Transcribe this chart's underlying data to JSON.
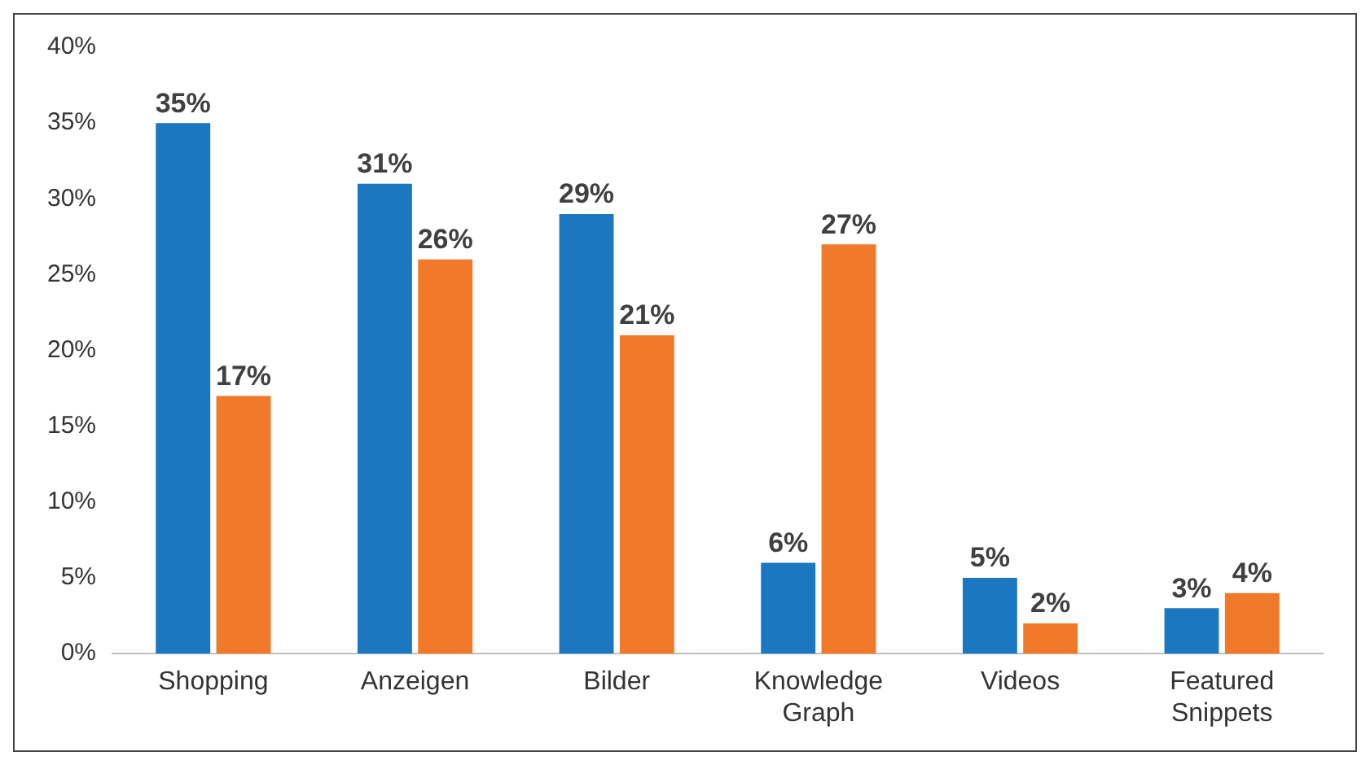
{
  "chart_data": {
    "type": "bar",
    "categories": [
      "Shopping",
      "Anzeigen",
      "Bilder",
      "Knowledge Graph",
      "Videos",
      "Featured Snippets"
    ],
    "series": [
      {
        "color": "#1a77c0",
        "values": [
          35,
          31,
          29,
          6,
          5,
          3
        ],
        "value_labels": [
          "35%",
          "31%",
          "29%",
          "6%",
          "5%",
          "3%"
        ]
      },
      {
        "color": "#f07a2a",
        "values": [
          17,
          26,
          21,
          27,
          2,
          4
        ],
        "value_labels": [
          "17%",
          "26%",
          "21%",
          "27%",
          "2%",
          "4%"
        ]
      }
    ],
    "ylim": [
      0,
      40
    ],
    "yticks": [
      {
        "value": 0,
        "label": "0%"
      },
      {
        "value": 5,
        "label": "5%"
      },
      {
        "value": 10,
        "label": "10%"
      },
      {
        "value": 15,
        "label": "15%"
      },
      {
        "value": 20,
        "label": "20%"
      },
      {
        "value": 25,
        "label": "25%"
      },
      {
        "value": 30,
        "label": "30%"
      },
      {
        "value": 35,
        "label": "35%"
      },
      {
        "value": 40,
        "label": "40%"
      }
    ],
    "grid": false,
    "legend": false
  }
}
